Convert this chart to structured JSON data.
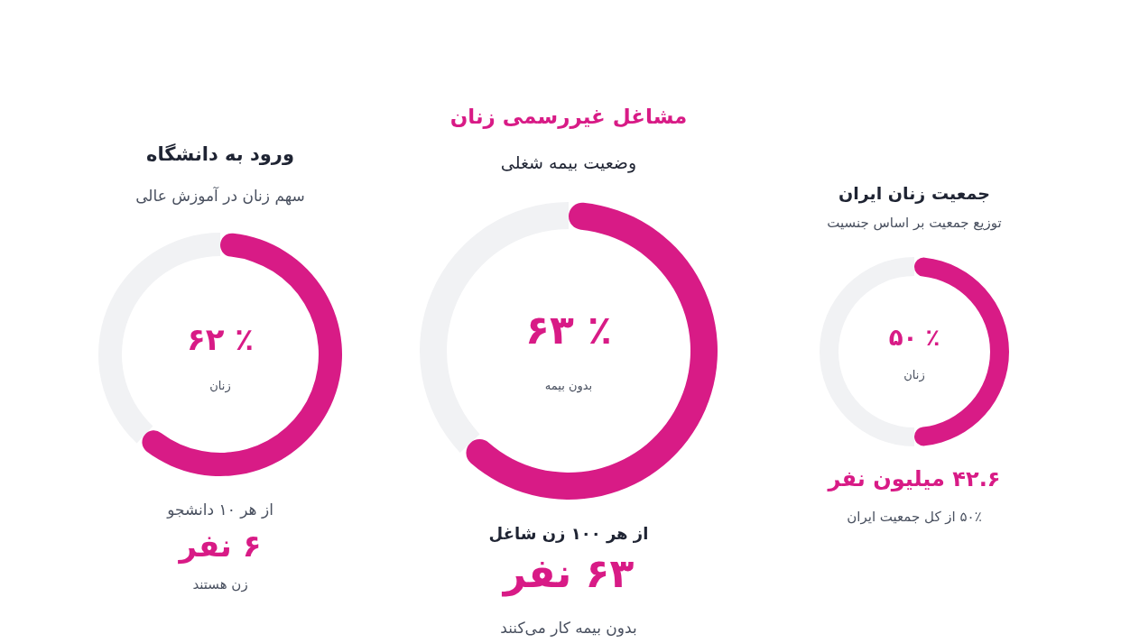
{
  "chart_data": [
    {
      "type": "donut",
      "title": "ورود به دانشگاه",
      "subtitle": "سهم زنان در آموزش عالی",
      "categories": [
        "زنان",
        null
      ],
      "values": [
        62,
        38
      ],
      "colors": [
        "#d81b86",
        "#f1f2f4"
      ],
      "value_labels": [
        "۶۲ ٪",
        null
      ],
      "annotations": [
        "از هر ۱۰ دانشجو",
        "۶ نفر",
        "زن هستند"
      ]
    },
    {
      "type": "donut",
      "title": "مشاغل غیررسمی زنان",
      "subtitle": "وضعیت بیمه شغلی",
      "categories": [
        "بدون بیمه",
        null
      ],
      "values": [
        63,
        37
      ],
      "colors": [
        "#d81b86",
        "#f1f2f4"
      ],
      "value_labels": [
        "۶۳ ٪",
        null
      ],
      "annotations": [
        "از هر ۱۰۰ زن شاغل",
        "۶۳ نفر",
        "بدون بیمه کار می‌کنند"
      ]
    },
    {
      "type": "donut",
      "title": "جمعیت زنان ایران",
      "subtitle": "توزیع جمعیت بر اساس جنسیت",
      "categories": [
        "زنان",
        null
      ],
      "values": [
        50,
        50
      ],
      "colors": [
        "#d81b86",
        "#f1f2f4"
      ],
      "value_labels": [
        "۵۰ ٪",
        null
      ],
      "annotations": [
        "۴۲.۶ میلیون نفر",
        "۵۰٪ از کل جمعیت ایران"
      ]
    }
  ]
}
